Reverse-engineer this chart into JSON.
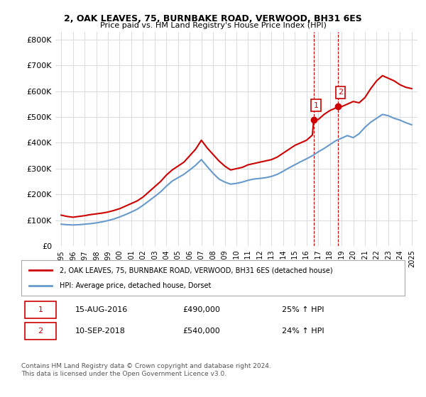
{
  "title": "2, OAK LEAVES, 75, BURNBAKE ROAD, VERWOOD, BH31 6ES",
  "subtitle": "Price paid vs. HM Land Registry's House Price Index (HPI)",
  "ylabel_ticks": [
    "£0",
    "£100K",
    "£200K",
    "£300K",
    "£400K",
    "£500K",
    "£600K",
    "£700K",
    "£800K"
  ],
  "ytick_values": [
    0,
    100000,
    200000,
    300000,
    400000,
    500000,
    600000,
    700000,
    800000
  ],
  "ylim": [
    0,
    830000
  ],
  "xlim_start": 1994.5,
  "xlim_end": 2025.5,
  "red_line_color": "#cc0000",
  "blue_line_color": "#6699cc",
  "dashed_line_color": "#cc0000",
  "marker1_x": 2016.62,
  "marker1_y": 490000,
  "marker2_x": 2018.7,
  "marker2_y": 540000,
  "marker1_label": "1",
  "marker2_label": "2",
  "legend_line1": "2, OAK LEAVES, 75, BURNBAKE ROAD, VERWOOD, BH31 6ES (detached house)",
  "legend_line2": "HPI: Average price, detached house, Dorset",
  "table_row1": [
    "1",
    "15-AUG-2016",
    "£490,000",
    "25% ↑ HPI"
  ],
  "table_row2": [
    "2",
    "10-SEP-2018",
    "£540,000",
    "24% ↑ HPI"
  ],
  "footer": "Contains HM Land Registry data © Crown copyright and database right 2024.\nThis data is licensed under the Open Government Licence v3.0.",
  "bg_color": "#ffffff",
  "grid_color": "#dddddd",
  "xtick_years": [
    1995,
    1996,
    1997,
    1998,
    1999,
    2000,
    2001,
    2002,
    2003,
    2004,
    2005,
    2006,
    2007,
    2008,
    2009,
    2010,
    2011,
    2012,
    2013,
    2014,
    2015,
    2016,
    2017,
    2018,
    2019,
    2020,
    2021,
    2022,
    2023,
    2024,
    2025
  ],
  "red_x": [
    1995,
    1995.5,
    1996,
    1996.5,
    1997,
    1997.5,
    1998,
    1998.5,
    1999,
    1999.5,
    2000,
    2000.5,
    2001,
    2001.5,
    2002,
    2002.5,
    2003,
    2003.5,
    2004,
    2004.5,
    2005,
    2005.5,
    2006,
    2006.5,
    2007,
    2007.5,
    2008,
    2008.5,
    2009,
    2009.5,
    2010,
    2010.5,
    2011,
    2011.5,
    2012,
    2012.5,
    2013,
    2013.5,
    2014,
    2014.5,
    2015,
    2015.5,
    2016,
    2016.5,
    2016.62,
    2017,
    2017.5,
    2018,
    2018.5,
    2018.7,
    2019,
    2019.5,
    2020,
    2020.5,
    2021,
    2021.5,
    2022,
    2022.5,
    2023,
    2023.5,
    2024,
    2024.5,
    2025
  ],
  "red_y": [
    120000,
    115000,
    112000,
    115000,
    118000,
    122000,
    125000,
    128000,
    132000,
    138000,
    145000,
    155000,
    165000,
    175000,
    190000,
    210000,
    230000,
    250000,
    275000,
    295000,
    310000,
    325000,
    350000,
    375000,
    410000,
    380000,
    355000,
    330000,
    310000,
    295000,
    300000,
    305000,
    315000,
    320000,
    325000,
    330000,
    335000,
    345000,
    360000,
    375000,
    390000,
    400000,
    410000,
    430000,
    490000,
    490000,
    510000,
    525000,
    535000,
    540000,
    540000,
    550000,
    560000,
    555000,
    575000,
    610000,
    640000,
    660000,
    650000,
    640000,
    625000,
    615000,
    610000
  ],
  "blue_x": [
    1995,
    1995.5,
    1996,
    1996.5,
    1997,
    1997.5,
    1998,
    1998.5,
    1999,
    1999.5,
    2000,
    2000.5,
    2001,
    2001.5,
    2002,
    2002.5,
    2003,
    2003.5,
    2004,
    2004.5,
    2005,
    2005.5,
    2006,
    2006.5,
    2007,
    2007.5,
    2008,
    2008.5,
    2009,
    2009.5,
    2010,
    2010.5,
    2011,
    2011.5,
    2012,
    2012.5,
    2013,
    2013.5,
    2014,
    2014.5,
    2015,
    2015.5,
    2016,
    2016.5,
    2017,
    2017.5,
    2018,
    2018.5,
    2019,
    2019.5,
    2020,
    2020.5,
    2021,
    2021.5,
    2022,
    2022.5,
    2023,
    2023.5,
    2024,
    2024.5,
    2025
  ],
  "blue_y": [
    85000,
    83000,
    82000,
    83000,
    85000,
    87000,
    90000,
    94000,
    99000,
    105000,
    113000,
    122000,
    132000,
    143000,
    158000,
    175000,
    192000,
    210000,
    232000,
    252000,
    265000,
    278000,
    295000,
    313000,
    335000,
    308000,
    282000,
    260000,
    248000,
    240000,
    243000,
    248000,
    255000,
    260000,
    262000,
    265000,
    270000,
    278000,
    290000,
    303000,
    315000,
    327000,
    338000,
    350000,
    365000,
    378000,
    393000,
    408000,
    418000,
    428000,
    420000,
    435000,
    460000,
    480000,
    495000,
    510000,
    505000,
    495000,
    488000,
    478000,
    470000
  ]
}
